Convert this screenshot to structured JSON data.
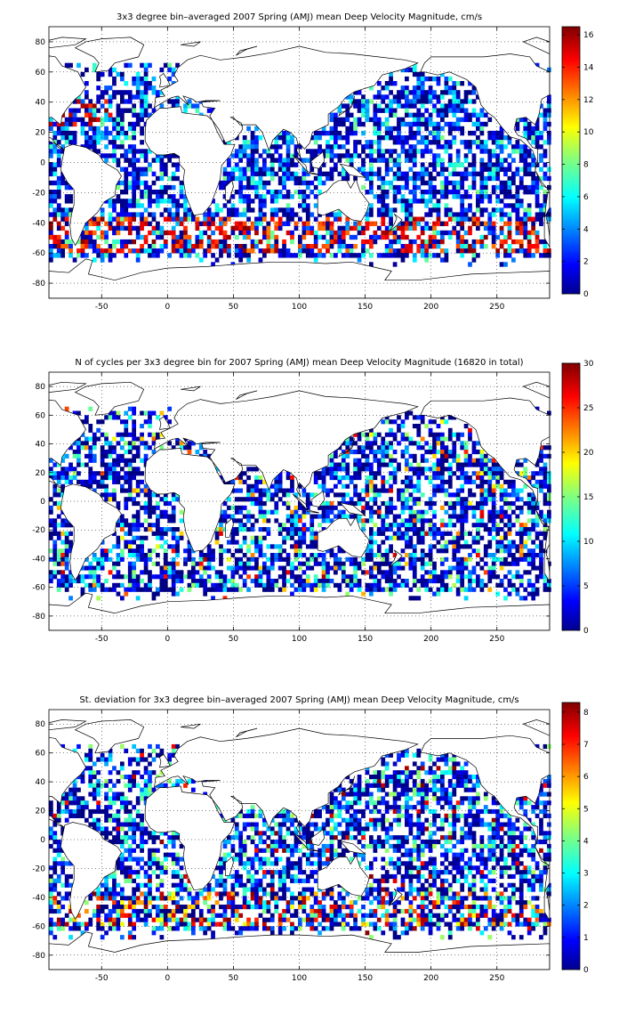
{
  "chart_data": [
    {
      "type": "heatmap",
      "title": "3x3 degree bin–averaged 2007 Spring (AMJ) mean Deep Velocity Magnitude, cm/s",
      "xlim": [
        -90,
        290
      ],
      "ylim": [
        -90,
        90
      ],
      "xticks": [
        -50,
        0,
        50,
        100,
        150,
        200,
        250
      ],
      "yticks": [
        80,
        60,
        40,
        20,
        0,
        -20,
        -40,
        -60,
        -80
      ],
      "colorbar": {
        "min": 0,
        "max": 16.5,
        "ticks": [
          0,
          2,
          4,
          6,
          8,
          10,
          12,
          14,
          16
        ]
      },
      "grid": true,
      "colormap": "jet"
    },
    {
      "type": "heatmap",
      "title": "N of cycles per 3x3 degree bin for 2007 Spring (AMJ) mean Deep Velocity Magnitude (16820 in total)",
      "xlim": [
        -90,
        290
      ],
      "ylim": [
        -90,
        90
      ],
      "xticks": [
        -50,
        0,
        50,
        100,
        150,
        200,
        250
      ],
      "yticks": [
        80,
        60,
        40,
        20,
        0,
        -20,
        -40,
        -60,
        -80
      ],
      "colorbar": {
        "min": 0,
        "max": 30,
        "ticks": [
          0,
          5,
          10,
          15,
          20,
          25,
          30
        ]
      },
      "grid": true,
      "colormap": "jet"
    },
    {
      "type": "heatmap",
      "title": "St. deviation for 3x3 degree bin–averaged 2007 Spring (AMJ) mean Deep Velocity Magnitude, cm/s",
      "xlim": [
        -90,
        290
      ],
      "ylim": [
        -90,
        90
      ],
      "xticks": [
        -50,
        0,
        50,
        100,
        150,
        200,
        250
      ],
      "yticks": [
        80,
        60,
        40,
        20,
        0,
        -20,
        -40,
        -60,
        -80
      ],
      "colorbar": {
        "min": 0,
        "max": 8.3,
        "ticks": [
          0,
          1,
          2,
          3,
          4,
          5,
          6,
          7,
          8
        ]
      },
      "grid": true,
      "colormap": "jet"
    }
  ]
}
